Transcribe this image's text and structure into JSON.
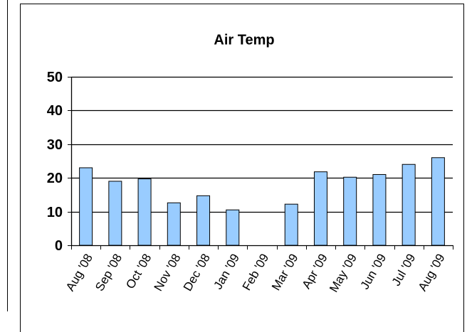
{
  "chart_data": {
    "type": "bar",
    "title": "Air Temp",
    "categories": [
      "Aug '08",
      "Sep '08",
      "Oct '08",
      "Nov '08",
      "Dec '08",
      "Jan '09",
      "Feb '09",
      "Mar '09",
      "Apr '09",
      "May '09",
      "Jun '09",
      "Jul '09",
      "Aug '09"
    ],
    "values": [
      23,
      19,
      19.7,
      12.6,
      14.7,
      10.5,
      null,
      12.2,
      21.8,
      20.2,
      21,
      24,
      26
    ],
    "color": "#99ccff",
    "ylim": [
      0,
      50
    ],
    "yticks": [
      0,
      10,
      20,
      30,
      40,
      50
    ],
    "grid": true
  }
}
